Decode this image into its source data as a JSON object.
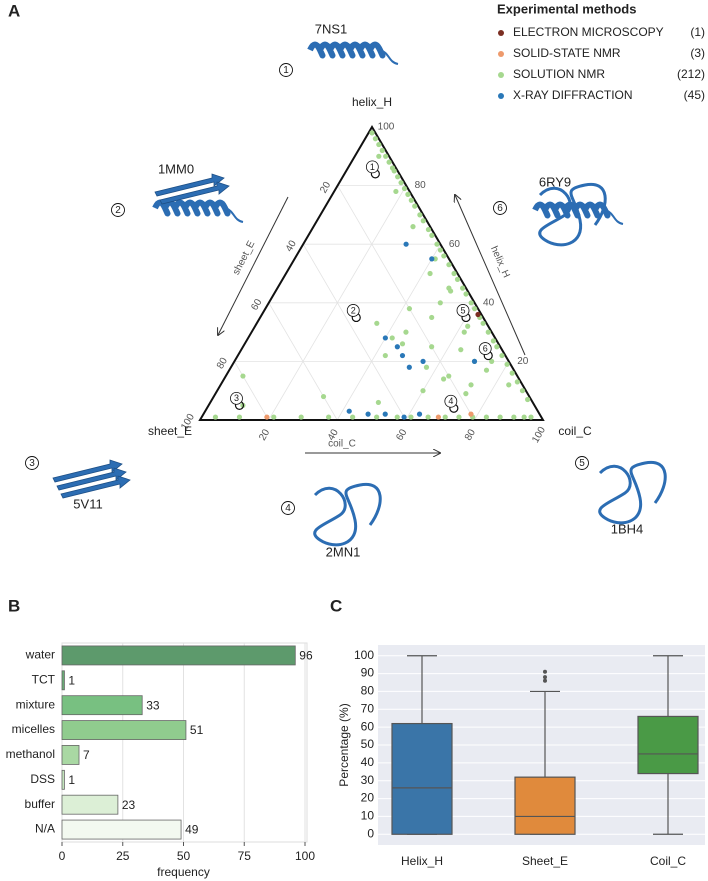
{
  "chart_data": [
    {
      "type": "ternary",
      "panel": "A",
      "legend_title": "Experimental methods",
      "axes": [
        "helix_H",
        "sheet_E",
        "coil_C"
      ],
      "ticks": [
        20,
        40,
        60,
        80,
        100
      ],
      "grid": true,
      "series": [
        {
          "name": "ELECTRON MICROSCOPY",
          "count": 1,
          "count_label": "(1)",
          "color": "#7b2e22",
          "helix": [
            36
          ],
          "sheet": [
            1
          ],
          "coil": [
            63
          ]
        },
        {
          "name": "SOLID-STATE NMR",
          "count": 3,
          "count_label": "(3)",
          "color": "#ee9a6c",
          "helix": [
            1,
            1,
            2
          ],
          "sheet": [
            80,
            30,
            20
          ],
          "coil": [
            19,
            69,
            78
          ]
        },
        {
          "name": "SOLUTION NMR",
          "count": 212,
          "count_label": "(212)",
          "color": "#a6d88f",
          "helix": [
            98,
            96,
            94,
            92,
            90,
            88,
            86,
            85,
            83,
            81,
            79,
            77,
            75,
            73,
            70,
            68,
            65,
            63,
            60,
            58,
            56,
            53,
            50,
            48,
            45,
            43,
            40,
            38,
            35,
            33,
            30,
            27,
            25,
            22,
            19,
            16,
            13,
            10,
            7,
            90,
            78,
            66,
            55,
            44,
            32,
            20,
            12,
            1,
            1,
            1,
            1,
            1,
            1,
            1,
            1,
            1,
            1,
            1,
            1,
            1,
            1,
            1,
            1,
            1,
            1,
            30,
            25,
            35,
            20,
            15,
            28,
            22,
            18,
            12,
            10,
            40,
            45,
            8,
            5,
            15,
            6,
            33,
            26,
            14,
            38,
            24,
            9,
            17,
            50,
            30
          ],
          "sheet": [
            1,
            1,
            1,
            1,
            1,
            1,
            1,
            1,
            1,
            1,
            1,
            1,
            1,
            1,
            1,
            1,
            1,
            1,
            1,
            1,
            1,
            1,
            1,
            1,
            1,
            1,
            1,
            1,
            1,
            1,
            1,
            1,
            1,
            1,
            1,
            1,
            1,
            1,
            1,
            3,
            4,
            5,
            4,
            5,
            6,
            5,
            4,
            95,
            88,
            78,
            70,
            62,
            55,
            48,
            42,
            38,
            33,
            28,
            24,
            20,
            16,
            12,
            8,
            5,
            3,
            25,
            20,
            15,
            10,
            20,
            30,
            35,
            25,
            15,
            30,
            10,
            5,
            60,
            85,
            80,
            45,
            32,
            28,
            22,
            20,
            12,
            18,
            8,
            8,
            8
          ],
          "coil": [
            1,
            3,
            5,
            7,
            9,
            11,
            13,
            14,
            16,
            18,
            20,
            22,
            24,
            26,
            29,
            31,
            34,
            36,
            39,
            41,
            43,
            46,
            49,
            51,
            54,
            56,
            59,
            61,
            64,
            66,
            69,
            72,
            74,
            77,
            80,
            83,
            86,
            89,
            92,
            7,
            18,
            29,
            41,
            51,
            62,
            75,
            84,
            4,
            11,
            21,
            29,
            37,
            44,
            51,
            57,
            61,
            66,
            71,
            75,
            79,
            83,
            87,
            91,
            94,
            96,
            45,
            55,
            50,
            70,
            65,
            42,
            43,
            57,
            73,
            60,
            50,
            50,
            32,
            10,
            5,
            49,
            35,
            46,
            64,
            42,
            64,
            73,
            75,
            42,
            62
          ]
        },
        {
          "name": "X-RAY DIFFRACTION",
          "count": 45,
          "count_label": "(45)",
          "color": "#2a78b8",
          "helix": [
            60,
            55,
            28,
            25,
            22,
            20,
            3,
            2,
            2,
            1,
            2,
            20,
            18
          ],
          "sheet": [
            10,
            5,
            32,
            30,
            30,
            25,
            55,
            50,
            45,
            40,
            35,
            10,
            30
          ],
          "coil": [
            30,
            40,
            40,
            45,
            48,
            55,
            42,
            48,
            53,
            59,
            63,
            70,
            52
          ]
        }
      ],
      "structures": [
        {
          "number": 1,
          "pdb": "7NS1",
          "helix": 84,
          "sheet": 7,
          "coil": 9
        },
        {
          "number": 2,
          "pdb": "1MM0",
          "helix": 35,
          "sheet": 37,
          "coil": 28
        },
        {
          "number": 3,
          "pdb": "5V11",
          "helix": 5,
          "sheet": 86,
          "coil": 9
        },
        {
          "number": 4,
          "pdb": "2MN1",
          "helix": 4,
          "sheet": 24,
          "coil": 72
        },
        {
          "number": 5,
          "pdb": "1BH4",
          "helix": 35,
          "sheet": 5,
          "coil": 60
        },
        {
          "number": 6,
          "pdb": "6RY9",
          "helix": 22,
          "sheet": 5,
          "coil": 73
        }
      ]
    },
    {
      "type": "hbar",
      "panel": "B",
      "categories": [
        "water",
        "TCT",
        "mixture",
        "micelles",
        "methanol",
        "DSS",
        "buffer",
        "N/A"
      ],
      "values": [
        96,
        1,
        33,
        51,
        7,
        1,
        23,
        49
      ],
      "colors": [
        "#5d9a6c",
        "#69ab76",
        "#78c081",
        "#90cc8e",
        "#a9d8a3",
        "#c3e4bc",
        "#dcefd6",
        "#f3f9f0"
      ],
      "xlim": [
        0,
        100
      ],
      "xticks": [
        0,
        25,
        50,
        75,
        100
      ],
      "xlabel": "frequency",
      "grid": true
    },
    {
      "type": "box",
      "panel": "C",
      "ylabel": "Percentage (%)",
      "categories": [
        "Helix_H",
        "Sheet_E",
        "Coil_C"
      ],
      "colors": [
        "#3a75a8",
        "#e08a3c",
        "#4a9a46"
      ],
      "min": [
        0,
        0,
        0
      ],
      "q1": [
        0,
        0,
        34
      ],
      "median": [
        26,
        10,
        45
      ],
      "q3": [
        62,
        32,
        66
      ],
      "max": [
        100,
        80,
        100
      ],
      "outliers": [
        [],
        [
          86,
          88,
          91
        ],
        []
      ],
      "ylim": [
        -6,
        106
      ],
      "yticks": [
        0,
        10,
        20,
        30,
        40,
        50,
        60,
        70,
        80,
        90,
        100
      ],
      "grid": true
    }
  ]
}
